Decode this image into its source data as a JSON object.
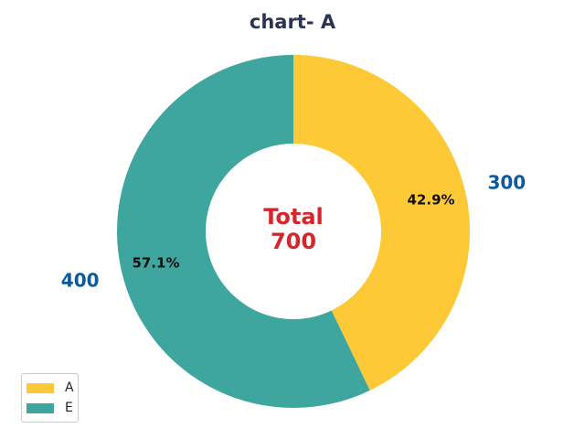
{
  "chart_data": {
    "type": "pie",
    "title": "chart- A",
    "categories": [
      "A",
      "E"
    ],
    "values": [
      300,
      400
    ],
    "value_labels": [
      "300",
      "400"
    ],
    "percent_labels": [
      "42.9%",
      "57.1%"
    ],
    "colors": [
      "#fdc936",
      "#3ea69e"
    ],
    "center_label": {
      "line1": "Total",
      "line2": "700",
      "color": "#d4262b"
    },
    "value_label_color": "#0a5aa0",
    "legend": {
      "placement": "lower-left",
      "entries": [
        "A",
        "E"
      ]
    },
    "donut": true,
    "start_angle_deg": 90,
    "direction": "clockwise"
  }
}
